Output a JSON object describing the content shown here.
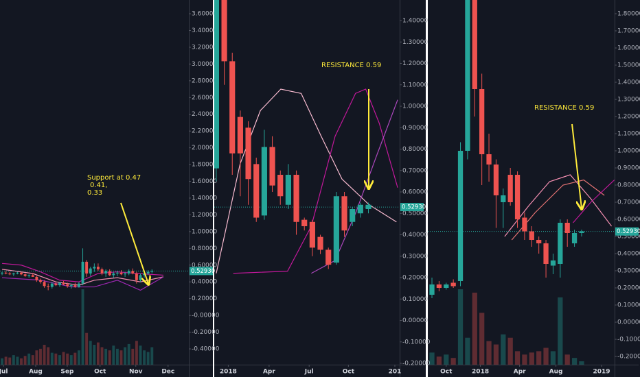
{
  "chart_data": [
    {
      "type": "candlestick",
      "up_color": "#26a69a",
      "down_color": "#ef5350",
      "xlim": [
        -0.54,
        48.6
      ],
      "ylim": [
        -0.588,
        3.764
      ],
      "xticks": [
        {
          "value": 0.36,
          "label": "Jul"
        },
        {
          "value": 8.75,
          "label": "Aug"
        },
        {
          "value": 16.96,
          "label": "Sep"
        },
        {
          "value": 25.5,
          "label": "Oct"
        },
        {
          "value": 34.8,
          "label": "Nov"
        },
        {
          "value": 43.2,
          "label": "Dec"
        }
      ],
      "yticks": [
        {
          "value": 3.6,
          "label": "3.60000"
        },
        {
          "value": 3.4,
          "label": "3.40000"
        },
        {
          "value": 3.2,
          "label": "3.20000"
        },
        {
          "value": 3.0,
          "label": "3.00000"
        },
        {
          "value": 2.8,
          "label": "2.80000"
        },
        {
          "value": 2.6,
          "label": "2.60000"
        },
        {
          "value": 2.4,
          "label": "2.40000"
        },
        {
          "value": 2.2,
          "label": "2.20000"
        },
        {
          "value": 2.0,
          "label": "2.00000"
        },
        {
          "value": 1.8,
          "label": "1.80000"
        },
        {
          "value": 1.6,
          "label": "1.60000"
        },
        {
          "value": 1.4,
          "label": "1.40000"
        },
        {
          "value": 1.2,
          "label": "1.20000"
        },
        {
          "value": 1.0,
          "label": "1.00000"
        },
        {
          "value": 0.8,
          "label": "0.80000"
        },
        {
          "value": 0.6,
          "label": "0.60000"
        },
        {
          "value": 0.4,
          "label": "0.40000"
        },
        {
          "value": 0.2,
          "label": "0.20000"
        },
        {
          "value": 0,
          "label": "-0.00000"
        },
        {
          "value": -0.2,
          "label": "-0.20000"
        },
        {
          "value": -0.4,
          "label": "-0.40000"
        }
      ],
      "candles": [
        [
          0.5,
          0.52,
          0.48,
          0.51
        ],
        [
          0.51,
          0.53,
          0.49,
          0.5
        ],
        [
          0.5,
          0.52,
          0.48,
          0.49
        ],
        [
          0.49,
          0.51,
          0.47,
          0.5
        ],
        [
          0.5,
          0.52,
          0.49,
          0.51
        ],
        [
          0.51,
          0.52,
          0.48,
          0.49
        ],
        [
          0.49,
          0.5,
          0.46,
          0.47
        ],
        [
          0.47,
          0.49,
          0.45,
          0.48
        ],
        [
          0.48,
          0.5,
          0.46,
          0.46
        ],
        [
          0.46,
          0.47,
          0.4,
          0.42
        ],
        [
          0.42,
          0.44,
          0.38,
          0.4
        ],
        [
          0.4,
          0.42,
          0.33,
          0.35
        ],
        [
          0.35,
          0.38,
          0.3,
          0.34
        ],
        [
          0.34,
          0.4,
          0.32,
          0.38
        ],
        [
          0.38,
          0.4,
          0.35,
          0.36
        ],
        [
          0.36,
          0.4,
          0.34,
          0.39
        ],
        [
          0.39,
          0.41,
          0.36,
          0.37
        ],
        [
          0.37,
          0.39,
          0.33,
          0.35
        ],
        [
          0.35,
          0.38,
          0.32,
          0.36
        ],
        [
          0.36,
          0.39,
          0.33,
          0.34
        ],
        [
          0.34,
          0.4,
          0.33,
          0.38
        ],
        [
          0.38,
          0.8,
          0.36,
          0.64
        ],
        [
          0.64,
          0.66,
          0.46,
          0.5
        ],
        [
          0.5,
          0.58,
          0.47,
          0.56
        ],
        [
          0.56,
          0.62,
          0.52,
          0.58
        ],
        [
          0.58,
          0.62,
          0.53,
          0.55
        ],
        [
          0.55,
          0.57,
          0.48,
          0.5
        ],
        [
          0.5,
          0.55,
          0.46,
          0.53
        ],
        [
          0.53,
          0.55,
          0.47,
          0.48
        ],
        [
          0.48,
          0.52,
          0.45,
          0.5
        ],
        [
          0.5,
          0.53,
          0.47,
          0.51
        ],
        [
          0.51,
          0.54,
          0.48,
          0.49
        ],
        [
          0.49,
          0.52,
          0.46,
          0.5
        ],
        [
          0.5,
          0.55,
          0.48,
          0.53
        ],
        [
          0.53,
          0.56,
          0.49,
          0.5
        ],
        [
          0.5,
          0.52,
          0.38,
          0.42
        ],
        [
          0.42,
          0.5,
          0.4,
          0.48
        ],
        [
          0.48,
          0.52,
          0.45,
          0.5
        ],
        [
          0.5,
          0.54,
          0.48,
          0.52
        ],
        [
          0.52,
          0.55,
          0.5,
          0.53
        ]
      ],
      "volumes": [
        8,
        10,
        9,
        12,
        10,
        8,
        11,
        14,
        12,
        18,
        20,
        25,
        22,
        15,
        14,
        12,
        16,
        14,
        12,
        15,
        18,
        95,
        40,
        30,
        25,
        28,
        22,
        20,
        18,
        24,
        20,
        18,
        22,
        26,
        20,
        30,
        24,
        18,
        16,
        22
      ],
      "series": [
        {
          "color": "#c2189b",
          "x": [
            0,
            5,
            10,
            15,
            20,
            25,
            30,
            35,
            42
          ],
          "values": [
            0.62,
            0.6,
            0.52,
            0.42,
            0.4,
            0.5,
            0.52,
            0.5,
            0.48
          ]
        },
        {
          "color": "#f48fb1",
          "x": [
            0,
            8,
            14,
            20,
            24,
            30,
            36,
            42
          ],
          "values": [
            0.55,
            0.5,
            0.4,
            0.36,
            0.42,
            0.45,
            0.4,
            0.46
          ]
        },
        {
          "color": "#9c27b0",
          "x": [
            0,
            10,
            18,
            24,
            30,
            36,
            42
          ],
          "values": [
            0.45,
            0.42,
            0.34,
            0.34,
            0.42,
            0.3,
            0.46
          ]
        }
      ],
      "last": {
        "value": 0.5293,
        "label": "0.52930"
      },
      "annotations": [
        "Support  at 0.47",
        "0.41,",
        "0.33"
      ]
    },
    {
      "type": "candlestick",
      "up_color": "#26a69a",
      "down_color": "#ef5350",
      "xlim": [
        -0.25,
        22.9
      ],
      "ylim": [
        -0.2064,
        1.496
      ],
      "xticks": [
        {
          "value": 1.5,
          "label": "2018"
        },
        {
          "value": 6.6,
          "label": "Apr"
        },
        {
          "value": 11.6,
          "label": "Jul"
        },
        {
          "value": 16.5,
          "label": "Oct"
        },
        {
          "value": 22.3,
          "label": "201"
        }
      ],
      "yticks": [
        {
          "value": 1.4,
          "label": "1.40000"
        },
        {
          "value": 1.3,
          "label": "1.30000"
        },
        {
          "value": 1.2,
          "label": "1.20000"
        },
        {
          "value": 1.1,
          "label": "1.10000"
        },
        {
          "value": 1.0,
          "label": "1.00000"
        },
        {
          "value": 0.9,
          "label": "0.90000"
        },
        {
          "value": 0.8,
          "label": "0.80000"
        },
        {
          "value": 0.7,
          "label": "0.70000"
        },
        {
          "value": 0.6,
          "label": "0.60000"
        },
        {
          "value": 0.5,
          "label": "0.50000"
        },
        {
          "value": 0.4,
          "label": "0.40000"
        },
        {
          "value": 0.3,
          "label": "0.30000"
        },
        {
          "value": 0.2,
          "label": "0.20000"
        },
        {
          "value": 0.1,
          "label": "0.10000"
        },
        {
          "value": 0,
          "label": "0.00000"
        },
        {
          "value": -0.1,
          "label": "-0.10000"
        },
        {
          "value": -0.2,
          "label": "-0.20000"
        }
      ],
      "candles": [
        [
          0.71,
          1.5,
          0.65,
          1.5
        ],
        [
          1.5,
          1.5,
          1.1,
          1.21
        ],
        [
          1.21,
          1.25,
          0.68,
          0.78
        ],
        [
          0.95,
          0.98,
          0.58,
          0.78
        ],
        [
          0.9,
          0.93,
          0.54,
          0.66
        ],
        [
          0.73,
          0.76,
          0.46,
          0.48
        ],
        [
          0.49,
          0.89,
          0.47,
          0.81
        ],
        [
          0.81,
          0.86,
          0.6,
          0.63
        ],
        [
          0.68,
          0.7,
          0.54,
          0.58
        ],
        [
          0.54,
          0.73,
          0.52,
          0.68
        ],
        [
          0.68,
          0.7,
          0.4,
          0.46
        ],
        [
          0.47,
          0.48,
          0.42,
          0.44
        ],
        [
          0.46,
          0.47,
          0.3,
          0.34
        ],
        [
          0.39,
          0.4,
          0.31,
          0.33
        ],
        [
          0.33,
          0.34,
          0.24,
          0.26
        ],
        [
          0.27,
          0.6,
          0.26,
          0.58
        ],
        [
          0.58,
          0.6,
          0.39,
          0.42
        ],
        [
          0.46,
          0.53,
          0.44,
          0.52
        ],
        [
          0.5,
          0.55,
          0.48,
          0.54
        ],
        [
          0.52,
          0.55,
          0.5,
          0.54
        ]
      ],
      "series": [
        {
          "color": "#f8bbd0",
          "x": [
            0,
            2.97,
            5.51,
            8.06,
            10.6,
            13.1,
            15.7,
            19.1,
            22.5
          ],
          "values": [
            0.22,
            0.73,
            0.98,
            1.08,
            1.06,
            0.86,
            0.66,
            0.54,
            0.46
          ]
        },
        {
          "color": "#c2189b",
          "x": [
            2.12,
            8.9,
            11.87,
            14.84,
            17.39,
            18.66,
            20.36,
            22.65
          ],
          "values": [
            0.22,
            0.23,
            0.44,
            0.86,
            1.06,
            1.08,
            0.92,
            0.62
          ]
        },
        {
          "color": "#ab47bc",
          "x": [
            11.87,
            14.84,
            17.39,
            19.93,
            22.65
          ],
          "values": [
            0.22,
            0.28,
            0.5,
            0.76,
            1.03
          ]
        }
      ],
      "last": {
        "value": 0.5293,
        "label": "0.52930"
      },
      "annotations": [
        "RESISTANCE 0.59"
      ]
    },
    {
      "type": "candlestick",
      "up_color": "#26a69a",
      "down_color": "#ef5350",
      "xlim": [
        -0.58,
        25.63
      ],
      "ylim": [
        -0.248,
        1.88
      ],
      "xticks": [
        {
          "value": 2.0,
          "label": "Oct"
        },
        {
          "value": 6.8,
          "label": "2018"
        },
        {
          "value": 12.3,
          "label": "Apr"
        },
        {
          "value": 17.4,
          "label": "Aug"
        },
        {
          "value": 23.8,
          "label": "2019"
        }
      ],
      "yticks": [
        {
          "value": 1.8,
          "label": "1.80000"
        },
        {
          "value": 1.7,
          "label": "1.70000"
        },
        {
          "value": 1.6,
          "label": "1.60000"
        },
        {
          "value": 1.5,
          "label": "1.50000"
        },
        {
          "value": 1.4,
          "label": "1.40000"
        },
        {
          "value": 1.3,
          "label": "1.30000"
        },
        {
          "value": 1.2,
          "label": "1.20000"
        },
        {
          "value": 1.1,
          "label": "1.10000"
        },
        {
          "value": 1.0,
          "label": "1.00000"
        },
        {
          "value": 0.9,
          "label": "0.90000"
        },
        {
          "value": 0.8,
          "label": "0.80000"
        },
        {
          "value": 0.7,
          "label": "0.70000"
        },
        {
          "value": 0.6,
          "label": "0.60000"
        },
        {
          "value": 0.5,
          "label": "0.50000"
        },
        {
          "value": 0.4,
          "label": "0.40000"
        },
        {
          "value": 0.3,
          "label": "0.30000"
        },
        {
          "value": 0.2,
          "label": "0.20000"
        },
        {
          "value": 0.1,
          "label": "0.10000"
        },
        {
          "value": 0,
          "label": "0.00000"
        },
        {
          "value": -0.1,
          "label": "-0.10000"
        },
        {
          "value": -0.2,
          "label": "-0.20000"
        }
      ],
      "candles": [
        [
          0.16,
          0.26,
          0.14,
          0.22
        ],
        [
          0.22,
          0.24,
          0.18,
          0.2
        ],
        [
          0.2,
          0.23,
          0.19,
          0.22
        ],
        [
          0.23,
          0.25,
          0.2,
          0.21
        ],
        [
          0.24,
          1.05,
          0.21,
          1.0
        ],
        [
          1.0,
          1.88,
          0.95,
          1.88
        ],
        [
          1.88,
          1.88,
          1.2,
          1.36
        ],
        [
          1.36,
          1.45,
          0.8,
          0.98
        ],
        [
          0.98,
          1.1,
          0.82,
          0.92
        ],
        [
          0.92,
          0.95,
          0.55,
          0.74
        ],
        [
          0.7,
          0.78,
          0.55,
          0.74
        ],
        [
          0.86,
          0.9,
          0.68,
          0.7
        ],
        [
          0.86,
          0.88,
          0.55,
          0.6
        ],
        [
          0.61,
          0.64,
          0.48,
          0.53
        ],
        [
          0.53,
          0.56,
          0.44,
          0.48
        ],
        [
          0.48,
          0.5,
          0.4,
          0.46
        ],
        [
          0.46,
          0.48,
          0.26,
          0.34
        ],
        [
          0.33,
          0.4,
          0.28,
          0.36
        ],
        [
          0.34,
          0.6,
          0.26,
          0.58
        ],
        [
          0.58,
          0.6,
          0.44,
          0.52
        ],
        [
          0.46,
          0.54,
          0.44,
          0.52
        ],
        [
          0.52,
          0.54,
          0.5,
          0.53
        ]
      ],
      "volumes": [
        18,
        12,
        15,
        10,
        112,
        40,
        107,
        77,
        35,
        30,
        45,
        40,
        20,
        15,
        18,
        20,
        25,
        20,
        100,
        15,
        10,
        5
      ],
      "series": [
        {
          "color": "#f48fb1",
          "x": [
            10.2,
            13.6,
            16.5,
            19.4,
            22.3,
            25.2
          ],
          "values": [
            0.5,
            0.68,
            0.82,
            0.86,
            0.72,
            0.56
          ]
        },
        {
          "color": "#e57373",
          "x": [
            11.2,
            14.5,
            18.4,
            21.3,
            24.2
          ],
          "values": [
            0.48,
            0.64,
            0.8,
            0.83,
            0.74
          ]
        },
        {
          "color": "#c2189b",
          "x": [
            19.8,
            22.3,
            25.6
          ],
          "values": [
            0.58,
            0.7,
            0.83
          ]
        }
      ],
      "last": {
        "value": 0.5293,
        "label": "0.52930"
      },
      "annotations": [
        "RESISTANCE 0.59"
      ]
    }
  ]
}
